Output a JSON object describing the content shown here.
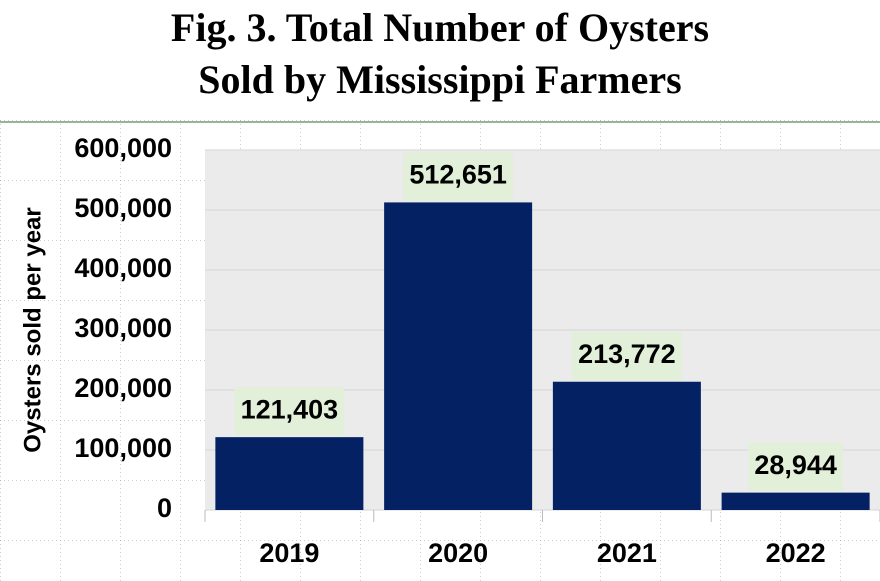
{
  "chart_data": {
    "type": "bar",
    "title": [
      "Fig. 3. Total Number of Oysters",
      "Sold by Mississippi Farmers"
    ],
    "y_label": "Oysters sold per year",
    "categories": [
      "2019",
      "2020",
      "2021",
      "2022"
    ],
    "values": [
      121403,
      512651,
      213772,
      28944
    ],
    "value_labels": [
      "121,403",
      "512,651",
      "213,772",
      "28,944"
    ],
    "color": "#042163",
    "ylim": [
      0,
      600000
    ],
    "yticks": [
      0,
      {
        "value": 100000,
        "label": "100,000"
      },
      {
        "value": 200000,
        "label": "200,000"
      },
      {
        "value": 300000,
        "label": "300,000"
      },
      {
        "value": 400000,
        "label": "400,000"
      },
      {
        "value": 500000,
        "label": "500,000"
      },
      {
        "value": 600000,
        "label": "600,000"
      }
    ],
    "grid": true
  }
}
